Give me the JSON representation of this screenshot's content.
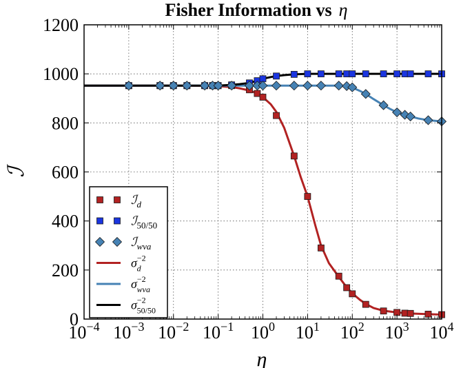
{
  "chart_data": {
    "type": "line",
    "title_text": "Fisher Information vs",
    "title_symbol": "η",
    "xlabel": "η",
    "ylabel": "ℐ",
    "xscale": "log",
    "xlim": [
      0.0001,
      10000
    ],
    "ylim": [
      0,
      1200
    ],
    "grid": true,
    "legend_position": "center-left",
    "x_ticks": [
      {
        "base": "10",
        "exp": "−4"
      },
      {
        "base": "10",
        "exp": "−3"
      },
      {
        "base": "10",
        "exp": "−2"
      },
      {
        "base": "10",
        "exp": "−1"
      },
      {
        "base": "10",
        "exp": "0"
      },
      {
        "base": "10",
        "exp": "1"
      },
      {
        "base": "10",
        "exp": "2"
      },
      {
        "base": "10",
        "exp": "3"
      },
      {
        "base": "10",
        "exp": "4"
      }
    ],
    "y_ticks": [
      "0",
      "200",
      "400",
      "600",
      "800",
      "1000",
      "1200"
    ],
    "series": [
      {
        "name_main": "ℐ",
        "name_sub": "d",
        "name_sup": "",
        "kind": "markers",
        "marker": "square",
        "color": "#b22222",
        "points": [
          [
            0.001,
            952
          ],
          [
            0.005,
            952
          ],
          [
            0.01,
            952
          ],
          [
            0.02,
            952
          ],
          [
            0.05,
            952
          ],
          [
            0.075,
            952
          ],
          [
            0.1,
            952
          ],
          [
            0.2,
            952
          ],
          [
            0.5,
            935
          ],
          [
            0.75,
            920
          ],
          [
            1,
            905
          ],
          [
            2,
            830
          ],
          [
            5,
            665
          ],
          [
            10,
            500
          ],
          [
            20,
            290
          ],
          [
            50,
            175
          ],
          [
            75,
            128
          ],
          [
            100,
            103
          ],
          [
            200,
            60
          ],
          [
            500,
            33
          ],
          [
            1000,
            27
          ],
          [
            1500,
            24
          ],
          [
            2000,
            23
          ],
          [
            5000,
            20
          ],
          [
            10000,
            18
          ]
        ]
      },
      {
        "name_main": "ℐ",
        "name_sub": "50/50",
        "name_sup": "",
        "kind": "markers",
        "marker": "square",
        "color": "#1a35e0",
        "points": [
          [
            0.001,
            952
          ],
          [
            0.005,
            952
          ],
          [
            0.01,
            952
          ],
          [
            0.02,
            952
          ],
          [
            0.05,
            952
          ],
          [
            0.075,
            952
          ],
          [
            0.1,
            952
          ],
          [
            0.2,
            955
          ],
          [
            0.5,
            963
          ],
          [
            0.75,
            972
          ],
          [
            1,
            980
          ],
          [
            2,
            991
          ],
          [
            5,
            998
          ],
          [
            10,
            1000
          ],
          [
            20,
            1000
          ],
          [
            50,
            1000
          ],
          [
            75,
            1000
          ],
          [
            100,
            1000
          ],
          [
            200,
            1000
          ],
          [
            500,
            1000
          ],
          [
            1000,
            1000
          ],
          [
            1500,
            1000
          ],
          [
            2000,
            1000
          ],
          [
            5000,
            1000
          ],
          [
            10000,
            1000
          ]
        ]
      },
      {
        "name_main": "ℐ",
        "name_sub": "wva",
        "name_sup": "",
        "kind": "markers",
        "marker": "diamond",
        "color": "#4682b4",
        "points": [
          [
            0.001,
            952
          ],
          [
            0.005,
            952
          ],
          [
            0.01,
            952
          ],
          [
            0.02,
            952
          ],
          [
            0.05,
            952
          ],
          [
            0.075,
            952
          ],
          [
            0.1,
            952
          ],
          [
            0.2,
            952
          ],
          [
            0.5,
            952
          ],
          [
            0.75,
            952
          ],
          [
            1,
            952
          ],
          [
            2,
            952
          ],
          [
            5,
            952
          ],
          [
            10,
            952
          ],
          [
            20,
            952
          ],
          [
            50,
            952
          ],
          [
            75,
            950
          ],
          [
            100,
            945
          ],
          [
            200,
            918
          ],
          [
            500,
            872
          ],
          [
            1000,
            843
          ],
          [
            1500,
            833
          ],
          [
            2000,
            826
          ],
          [
            5000,
            811
          ],
          [
            10000,
            806
          ]
        ]
      },
      {
        "name_main": "σ",
        "name_sub": "d",
        "name_sup": "−2",
        "kind": "line",
        "color": "#b22222",
        "points": [
          [
            0.0001,
            952
          ],
          [
            0.001,
            952
          ],
          [
            0.01,
            952
          ],
          [
            0.05,
            951
          ],
          [
            0.1,
            950
          ],
          [
            0.2,
            946
          ],
          [
            0.3,
            941
          ],
          [
            0.5,
            932
          ],
          [
            0.75,
            920
          ],
          [
            1,
            905
          ],
          [
            1.5,
            876
          ],
          [
            2,
            845
          ],
          [
            3,
            780
          ],
          [
            5,
            665
          ],
          [
            7,
            580
          ],
          [
            10,
            500
          ],
          [
            15,
            380
          ],
          [
            20,
            300
          ],
          [
            30,
            228
          ],
          [
            50,
            172
          ],
          [
            75,
            130
          ],
          [
            100,
            105
          ],
          [
            150,
            78
          ],
          [
            200,
            62
          ],
          [
            300,
            45
          ],
          [
            500,
            34
          ],
          [
            1000,
            27
          ],
          [
            2000,
            23
          ],
          [
            5000,
            20
          ],
          [
            10000,
            18
          ]
        ]
      },
      {
        "name_main": "σ",
        "name_sub": "wva",
        "name_sup": "−2",
        "kind": "line",
        "color": "#4682b4",
        "points": [
          [
            0.0001,
            952
          ],
          [
            1,
            952
          ],
          [
            10,
            952
          ],
          [
            50,
            952
          ],
          [
            75,
            949
          ],
          [
            100,
            944
          ],
          [
            150,
            930
          ],
          [
            200,
            918
          ],
          [
            300,
            897
          ],
          [
            500,
            872
          ],
          [
            700,
            857
          ],
          [
            1000,
            843
          ],
          [
            1500,
            833
          ],
          [
            2000,
            826
          ],
          [
            3000,
            818
          ],
          [
            5000,
            811
          ],
          [
            10000,
            806
          ]
        ]
      },
      {
        "name_main": "σ",
        "name_sub": "50/50",
        "name_sup": "−2",
        "kind": "line",
        "color": "#000000",
        "points": [
          [
            0.0001,
            952
          ],
          [
            0.01,
            952
          ],
          [
            0.1,
            952
          ],
          [
            0.2,
            955
          ],
          [
            0.3,
            958
          ],
          [
            0.5,
            963
          ],
          [
            0.75,
            972
          ],
          [
            1,
            980
          ],
          [
            1.5,
            987
          ],
          [
            2,
            991
          ],
          [
            3,
            995
          ],
          [
            5,
            998
          ],
          [
            10,
            1000
          ],
          [
            100,
            1000
          ],
          [
            10000,
            1000
          ]
        ]
      }
    ]
  }
}
